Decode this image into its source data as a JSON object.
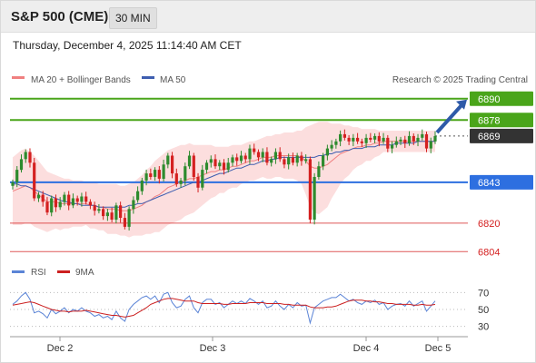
{
  "header": {
    "symbol": "S&P 500 (CME)",
    "timeframe": "30 MIN",
    "datetime": "Thursday, December 4, 2025 11:14:40 AM CET"
  },
  "legend": {
    "ma20": "MA 20 + Bollinger Bands",
    "ma50": "MA 50",
    "credit": "Research © 2025 Trading Central",
    "rsi": "RSI",
    "rsi_ma": "9MA"
  },
  "colors": {
    "up": "#2e8b2e",
    "down": "#d42020",
    "bollinger": "#fbd3d3",
    "ma20": "#f08080",
    "ma50": "#3e5eb0",
    "green_level": "#4aa51a",
    "blue_level": "#2d6fe0",
    "red_level": "#d42020",
    "current_price": "#333333",
    "arrow": "#2e5aa8",
    "rsi_line": "#5b84d6",
    "rsi_ma_line": "#cc2020"
  },
  "chart_data": [
    {
      "type": "candlestick",
      "title": "",
      "y_range": [
        6797,
        6896
      ],
      "x_ticks": [
        "Dec 2",
        "Dec 3",
        "Dec 4",
        "Dec 5"
      ],
      "levels": [
        {
          "value": 6890,
          "label": "6890",
          "kind": "resistance",
          "color": "#4aa51a"
        },
        {
          "value": 6878,
          "label": "6878",
          "kind": "resistance",
          "color": "#4aa51a"
        },
        {
          "value": 6869,
          "label": "6869",
          "kind": "current",
          "color": "#333333"
        },
        {
          "value": 6843,
          "label": "6843",
          "kind": "pivot",
          "color": "#2d6fe0"
        },
        {
          "value": 6820,
          "label": "6820",
          "kind": "support",
          "color": "#d42020"
        },
        {
          "value": 6804,
          "label": "6804",
          "kind": "support",
          "color": "#d42020"
        }
      ],
      "forecast_arrow": {
        "from": 6871,
        "to": 6890
      },
      "series": [
        {
          "name": "Price",
          "closes": [
            6843,
            6850,
            6856,
            6860,
            6854,
            6834,
            6836,
            6832,
            6826,
            6834,
            6829,
            6832,
            6836,
            6830,
            6834,
            6832,
            6835,
            6832,
            6830,
            6827,
            6828,
            6824,
            6826,
            6822,
            6830,
            6823,
            6818,
            6828,
            6833,
            6838,
            6844,
            6848,
            6846,
            6850,
            6845,
            6853,
            6858,
            6848,
            6842,
            6844,
            6852,
            6858,
            6846,
            6840,
            6850,
            6854,
            6856,
            6852,
            6854,
            6850,
            6854,
            6857,
            6855,
            6858,
            6856,
            6862,
            6860,
            6857,
            6860,
            6854,
            6856,
            6860,
            6856,
            6853,
            6857,
            6854,
            6858,
            6855,
            6856,
            6822,
            6846,
            6852,
            6858,
            6862,
            6864,
            6866,
            6870,
            6868,
            6866,
            6868,
            6866,
            6865,
            6868,
            6867,
            6869,
            6866,
            6868,
            6862,
            6864,
            6866,
            6867,
            6865,
            6869,
            6866,
            6868,
            6870,
            6862,
            6866,
            6869
          ]
        },
        {
          "name": "MA 20",
          "values": [
            6838,
            6839,
            6840,
            6841,
            6840,
            6838,
            6836,
            6834,
            6832,
            6832,
            6832,
            6831,
            6831,
            6831,
            6831,
            6831,
            6831,
            6831,
            6830,
            6830,
            6829,
            6829,
            6828,
            6828,
            6828,
            6827,
            6827,
            6827,
            6828,
            6829,
            6830,
            6832,
            6833,
            6835,
            6836,
            6838,
            6840,
            6841,
            6842,
            6843,
            6844,
            6845,
            6845,
            6846,
            6847,
            6848,
            6849,
            6849,
            6850,
            6850,
            6851,
            6852,
            6852,
            6853,
            6854,
            6855,
            6855,
            6856,
            6857,
            6857,
            6857,
            6858,
            6858,
            6858,
            6858,
            6858,
            6858,
            6857,
            6855,
            6852,
            6851,
            6851,
            6852,
            6853,
            6855,
            6857,
            6859,
            6860,
            6861,
            6862,
            6863,
            6863,
            6864,
            6864,
            6865,
            6865,
            6866,
            6866,
            6866,
            6866,
            6866,
            6866,
            6866,
            6866,
            6866,
            6866,
            6866,
            6866,
            6866
          ]
        },
        {
          "name": "MA 50",
          "values": [
            6842,
            6842,
            6841,
            6841,
            6840,
            6839,
            6838,
            6837,
            6836,
            6835,
            6834,
            6833,
            6832,
            6832,
            6831,
            6831,
            6830,
            6830,
            6830,
            6830,
            6829,
            6829,
            6829,
            6829,
            6829,
            6829,
            6829,
            6830,
            6830,
            6831,
            6831,
            6832,
            6833,
            6834,
            6835,
            6836,
            6837,
            6838,
            6839,
            6840,
            6841,
            6842,
            6843,
            6843,
            6844,
            6845,
            6846,
            6847,
            6848,
            6848,
            6849,
            6850,
            6851,
            6851,
            6852,
            6853,
            6853,
            6854,
            6855,
            6855,
            6856,
            6856,
            6857,
            6857,
            6857,
            6857,
            6857,
            6857,
            6857,
            6857,
            6857,
            6858,
            6858,
            6859,
            6859,
            6860,
            6860,
            6861,
            6861,
            6862,
            6862,
            6862,
            6863,
            6863,
            6863,
            6864,
            6864,
            6864,
            6864,
            6865,
            6865,
            6865,
            6865,
            6865,
            6866,
            6866,
            6866,
            6866,
            6866
          ]
        },
        {
          "name": "Bollinger Bands",
          "upper": [
            6857,
            6859,
            6861,
            6862,
            6860,
            6858,
            6855,
            6852,
            6849,
            6848,
            6847,
            6846,
            6845,
            6845,
            6844,
            6844,
            6844,
            6843,
            6843,
            6843,
            6842,
            6842,
            6842,
            6842,
            6842,
            6841,
            6841,
            6842,
            6843,
            6845,
            6847,
            6850,
            6852,
            6855,
            6857,
            6859,
            6861,
            6862,
            6863,
            6864,
            6864,
            6865,
            6864,
            6864,
            6864,
            6864,
            6864,
            6863,
            6863,
            6863,
            6863,
            6864,
            6864,
            6864,
            6865,
            6866,
            6866,
            6867,
            6868,
            6869,
            6869,
            6870,
            6870,
            6871,
            6871,
            6871,
            6872,
            6872,
            6874,
            6875,
            6876,
            6877,
            6877,
            6877,
            6876,
            6876,
            6876,
            6875,
            6875,
            6874,
            6874,
            6873,
            6873,
            6873,
            6873,
            6872,
            6872,
            6872,
            6872,
            6872,
            6872,
            6872,
            6872,
            6872,
            6872,
            6872,
            6872,
            6872,
            6872
          ],
          "lower": [
            6819,
            6819,
            6819,
            6820,
            6820,
            6818,
            6817,
            6816,
            6815,
            6816,
            6817,
            6816,
            6817,
            6817,
            6818,
            6818,
            6818,
            6819,
            6817,
            6817,
            6816,
            6816,
            6814,
            6814,
            6814,
            6813,
            6813,
            6812,
            6813,
            6813,
            6813,
            6814,
            6814,
            6815,
            6815,
            6817,
            6819,
            6820,
            6821,
            6822,
            6824,
            6825,
            6826,
            6828,
            6830,
            6832,
            6834,
            6835,
            6837,
            6837,
            6839,
            6840,
            6840,
            6842,
            6843,
            6844,
            6844,
            6845,
            6846,
            6845,
            6845,
            6846,
            6846,
            6845,
            6845,
            6845,
            6844,
            6842,
            6836,
            6829,
            6826,
            6825,
            6827,
            6829,
            6834,
            6838,
            6842,
            6845,
            6847,
            6850,
            6852,
            6853,
            6855,
            6855,
            6857,
            6858,
            6860,
            6860,
            6860,
            6860,
            6860,
            6860,
            6860,
            6860,
            6860,
            6860,
            6860,
            6860,
            6860
          ]
        }
      ]
    },
    {
      "type": "line",
      "title": "",
      "y_range": [
        20,
        80
      ],
      "y_ticks": [
        30,
        50,
        70
      ],
      "series": [
        {
          "name": "RSI",
          "values": [
            56,
            60,
            66,
            70,
            62,
            46,
            48,
            45,
            40,
            50,
            45,
            48,
            52,
            46,
            50,
            48,
            52,
            48,
            46,
            42,
            44,
            40,
            42,
            38,
            48,
            40,
            36,
            50,
            56,
            60,
            64,
            66,
            62,
            66,
            58,
            68,
            70,
            58,
            52,
            54,
            62,
            66,
            52,
            46,
            58,
            62,
            62,
            56,
            58,
            52,
            56,
            60,
            57,
            60,
            57,
            63,
            60,
            56,
            60,
            52,
            54,
            60,
            54,
            50,
            56,
            52,
            58,
            54,
            55,
            34,
            52,
            56,
            60,
            62,
            64,
            64,
            68,
            64,
            60,
            62,
            58,
            56,
            60,
            58,
            61,
            56,
            58,
            50,
            54,
            56,
            57,
            54,
            60,
            54,
            57,
            60,
            48,
            54,
            60
          ]
        },
        {
          "name": "9MA",
          "values": [
            55,
            56,
            57,
            58,
            59,
            58,
            56,
            54,
            52,
            50,
            49,
            48,
            48,
            47,
            48,
            48,
            48,
            49,
            48,
            47,
            46,
            45,
            44,
            43,
            43,
            42,
            41,
            42,
            43,
            46,
            49,
            52,
            56,
            58,
            60,
            62,
            63,
            63,
            62,
            61,
            60,
            60,
            60,
            58,
            57,
            57,
            57,
            57,
            57,
            56,
            56,
            57,
            57,
            57,
            57,
            58,
            58,
            58,
            58,
            57,
            57,
            57,
            57,
            56,
            56,
            55,
            55,
            55,
            55,
            53,
            52,
            52,
            52,
            53,
            53,
            54,
            56,
            58,
            60,
            61,
            61,
            61,
            60,
            60,
            59,
            59,
            58,
            57,
            57,
            56,
            56,
            56,
            56,
            55,
            55,
            56,
            55,
            55,
            56
          ]
        }
      ]
    }
  ]
}
